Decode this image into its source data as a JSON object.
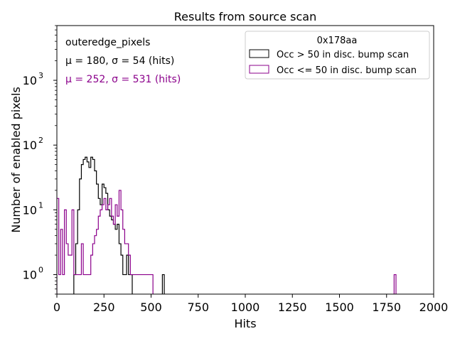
{
  "chart_data": {
    "type": "histogram",
    "title": "Results from source scan",
    "xlabel": "Hits",
    "ylabel": "Number of enabled pixels",
    "xlim": [
      0,
      2000
    ],
    "ylim": [
      0.5,
      7000
    ],
    "yscale": "log",
    "x_ticks": [
      0,
      250,
      500,
      750,
      1000,
      1250,
      1500,
      1750,
      2000
    ],
    "x_tick_labels": [
      "0",
      "250",
      "500",
      "750",
      "1000",
      "1250",
      "1500",
      "1750",
      "2000"
    ],
    "y_ticks": [
      1,
      10,
      100,
      1000
    ],
    "y_tick_base": "10",
    "y_tick_exponents": [
      "0",
      "1",
      "2",
      "3"
    ],
    "bin_width": 10,
    "annotations": {
      "name": "outeredge_pixels",
      "stats_black": "μ = 180, σ = 54 (hits)",
      "stats_purple": "μ = 252, σ = 531 (hits)"
    },
    "legend": {
      "title": "0x178aa",
      "placement": "upper right"
    },
    "series": [
      {
        "name": "Occ > 50 in disc. bump scan",
        "color": "#000000",
        "bins": [
          [
            90,
            1
          ],
          [
            100,
            3
          ],
          [
            110,
            10
          ],
          [
            120,
            30
          ],
          [
            130,
            50
          ],
          [
            140,
            60
          ],
          [
            150,
            65
          ],
          [
            160,
            55
          ],
          [
            170,
            45
          ],
          [
            180,
            65
          ],
          [
            190,
            60
          ],
          [
            200,
            40
          ],
          [
            210,
            25
          ],
          [
            220,
            15
          ],
          [
            230,
            12
          ],
          [
            240,
            25
          ],
          [
            250,
            22
          ],
          [
            260,
            18
          ],
          [
            270,
            10
          ],
          [
            280,
            8
          ],
          [
            290,
            7
          ],
          [
            300,
            6
          ],
          [
            310,
            5
          ],
          [
            320,
            6
          ],
          [
            330,
            3
          ],
          [
            340,
            2
          ],
          [
            350,
            1
          ],
          [
            360,
            1
          ],
          [
            370,
            2
          ],
          [
            380,
            1
          ],
          [
            390,
            1
          ],
          [
            560,
            1
          ]
        ]
      },
      {
        "name": "Occ <= 50 in disc. bump scan",
        "color": "#8B008B",
        "bins": [
          [
            0,
            15
          ],
          [
            10,
            1
          ],
          [
            20,
            5
          ],
          [
            30,
            1
          ],
          [
            40,
            10
          ],
          [
            50,
            3
          ],
          [
            60,
            2
          ],
          [
            70,
            2
          ],
          [
            80,
            10
          ],
          [
            90,
            1
          ],
          [
            100,
            1
          ],
          [
            110,
            1
          ],
          [
            120,
            1
          ],
          [
            130,
            3
          ],
          [
            140,
            1
          ],
          [
            150,
            1
          ],
          [
            160,
            1
          ],
          [
            170,
            1
          ],
          [
            180,
            2
          ],
          [
            190,
            3
          ],
          [
            200,
            4
          ],
          [
            210,
            5
          ],
          [
            220,
            8
          ],
          [
            230,
            10
          ],
          [
            240,
            12
          ],
          [
            250,
            15
          ],
          [
            260,
            10
          ],
          [
            270,
            12
          ],
          [
            280,
            15
          ],
          [
            290,
            8
          ],
          [
            300,
            6
          ],
          [
            310,
            12
          ],
          [
            320,
            8
          ],
          [
            330,
            20
          ],
          [
            340,
            10
          ],
          [
            350,
            5
          ],
          [
            360,
            3
          ],
          [
            370,
            3
          ],
          [
            380,
            2
          ],
          [
            390,
            1
          ],
          [
            400,
            1
          ],
          [
            410,
            1
          ],
          [
            420,
            1
          ],
          [
            430,
            1
          ],
          [
            440,
            1
          ],
          [
            450,
            1
          ],
          [
            460,
            1
          ],
          [
            470,
            1
          ],
          [
            480,
            1
          ],
          [
            490,
            1
          ],
          [
            500,
            1
          ],
          [
            1790,
            1
          ]
        ]
      }
    ]
  }
}
